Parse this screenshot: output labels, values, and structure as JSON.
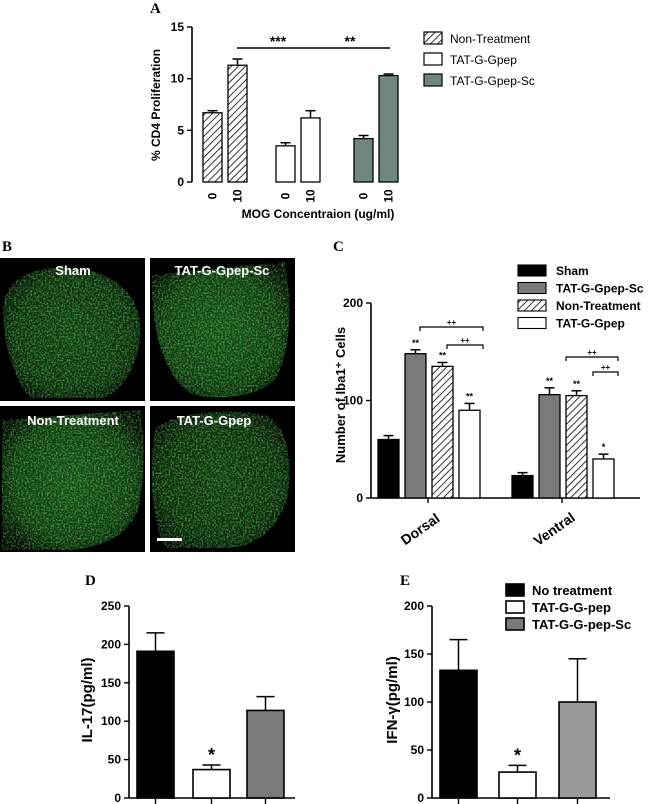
{
  "colors": {
    "black": "#000000",
    "dark_gray": "#7a7a7a",
    "teal_gray": "#6f8682",
    "light_gray": "#9a9a9a",
    "micro_green": "#2f9a2f",
    "micro_bg": "#000000"
  },
  "panels": {
    "A": {
      "letter": "A"
    },
    "B": {
      "letter": "B",
      "images": [
        {
          "label": "Sham"
        },
        {
          "label": "TAT-G-Gpep-Sc"
        },
        {
          "label": "Non-Treatment"
        },
        {
          "label": "TAT-G-Gpep"
        }
      ]
    },
    "C": {
      "letter": "C"
    },
    "D": {
      "letter": "D"
    },
    "E": {
      "letter": "E"
    }
  },
  "chart_data": [
    {
      "id": "A",
      "type": "bar",
      "ylabel": "% CD4 Proliferation",
      "xlabel": "MOG  Concentraion  (ug/ml)",
      "ylim": [
        0,
        15
      ],
      "yticks": [
        0,
        5,
        10,
        15
      ],
      "series": [
        {
          "name": "Non-Treatment",
          "pattern": "hatch",
          "categories": [
            "0",
            "10"
          ],
          "values": [
            6.7,
            11.3
          ],
          "errors": [
            0.2,
            0.6
          ]
        },
        {
          "name": "TAT-G-Gpep",
          "pattern": "white",
          "categories": [
            "0",
            "10"
          ],
          "values": [
            3.5,
            6.2
          ],
          "errors": [
            0.3,
            0.7
          ]
        },
        {
          "name": "TAT-G-Gpep-Sc",
          "pattern": "teal",
          "categories": [
            "0",
            "10"
          ],
          "values": [
            4.2,
            10.3
          ],
          "errors": [
            0.3,
            0.15
          ]
        }
      ],
      "significance": [
        {
          "label": "***"
        },
        {
          "label": "**"
        }
      ],
      "legend": "top-right"
    },
    {
      "id": "C",
      "type": "bar",
      "ylabel": "Number of Iba1⁺ Cells",
      "ylim": [
        0,
        200
      ],
      "yticks": [
        0,
        100,
        200
      ],
      "categories": [
        "Dorsal",
        "Ventral"
      ],
      "series": [
        {
          "name": "Sham",
          "pattern": "black",
          "values": [
            60,
            23
          ],
          "errors": [
            4,
            3
          ],
          "stars": [
            "",
            ""
          ]
        },
        {
          "name": "TAT-G-Gpep-Sc",
          "pattern": "gray",
          "values": [
            148,
            106
          ],
          "errors": [
            4,
            7
          ],
          "stars": [
            "**",
            "**"
          ]
        },
        {
          "name": "Non-Treatment",
          "pattern": "hatch",
          "values": [
            135,
            105
          ],
          "errors": [
            4,
            5
          ],
          "stars": [
            "**",
            "**"
          ]
        },
        {
          "name": "TAT-G-Gpep",
          "pattern": "white",
          "values": [
            90,
            40
          ],
          "errors": [
            7,
            5
          ],
          "stars": [
            "**",
            "*"
          ]
        }
      ],
      "significance": [
        {
          "label": "++"
        },
        {
          "label": "++"
        },
        {
          "label": "++"
        },
        {
          "label": "++"
        }
      ],
      "legend": "top-right"
    },
    {
      "id": "D",
      "type": "bar",
      "ylabel": "IL-17(pg/ml)",
      "ylim": [
        0,
        250
      ],
      "yticks": [
        0,
        50,
        100,
        150,
        200,
        250
      ],
      "series": [
        {
          "name": "No treatment",
          "pattern": "black",
          "value": 191,
          "error": 24,
          "star": ""
        },
        {
          "name": "TAT-G-G-pep",
          "pattern": "white",
          "value": 37,
          "error": 6,
          "star": "*"
        },
        {
          "name": "TAT-G-G-pep-Sc",
          "pattern": "gray",
          "value": 114,
          "error": 18,
          "star": ""
        }
      ]
    },
    {
      "id": "E",
      "type": "bar",
      "ylabel": "IFN-γ(pg/ml)",
      "ylim": [
        0,
        200
      ],
      "yticks": [
        0,
        50,
        100,
        150,
        200
      ],
      "series": [
        {
          "name": "No treatment",
          "pattern": "black",
          "value": 133,
          "error": 32,
          "star": ""
        },
        {
          "name": "TAT-G-G-pep",
          "pattern": "white",
          "value": 27,
          "error": 7,
          "star": "*"
        },
        {
          "name": "TAT-G-G-pep-Sc",
          "pattern": "gray",
          "value": 100,
          "error": 45,
          "star": ""
        }
      ],
      "legend": "top-right"
    }
  ]
}
